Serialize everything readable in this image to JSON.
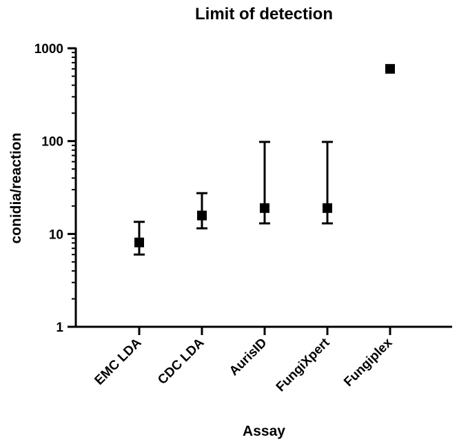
{
  "chart_data": {
    "type": "scatter",
    "title": "Limit of detection",
    "xlabel": "Assay",
    "ylabel": "conidia/reaction",
    "yscale": "log",
    "ylim": [
      1,
      1000
    ],
    "yticks": [
      {
        "value": 1,
        "label": "1"
      },
      {
        "value": 10,
        "label": "10"
      },
      {
        "value": 100,
        "label": "100"
      },
      {
        "value": 1000,
        "label": "1000"
      }
    ],
    "categories": [
      "EMC LDA",
      "CDC LDA",
      "AurisID",
      "FungiXpert",
      "Fungiplex"
    ],
    "values": [
      8.1,
      15.8,
      19,
      19,
      600
    ],
    "error_low": [
      6,
      11.5,
      13,
      13,
      null
    ],
    "error_high": [
      13.5,
      27.5,
      98,
      98,
      null
    ],
    "marker": "square",
    "color": "#000000"
  }
}
